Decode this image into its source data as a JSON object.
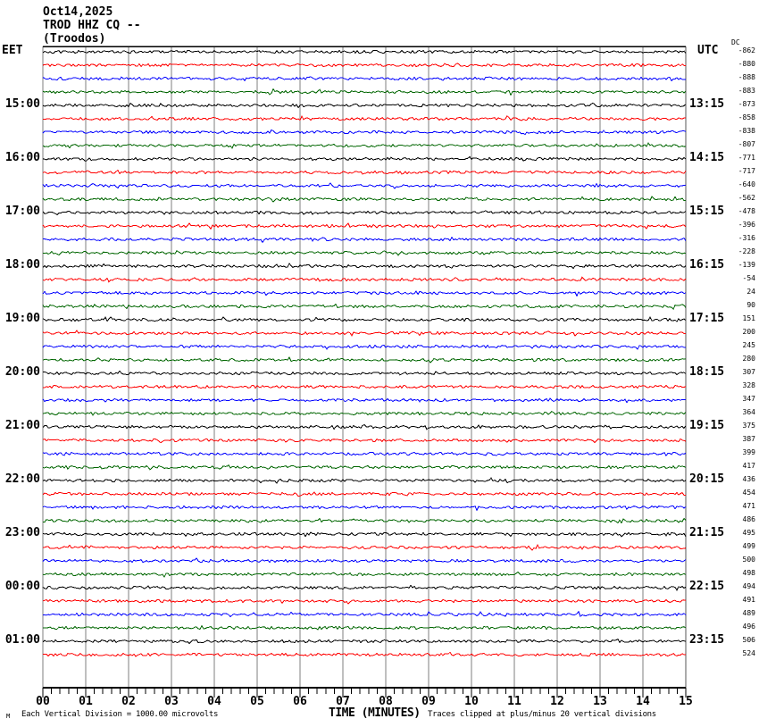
{
  "header": {
    "date": "Oct14,2025",
    "station": "TROD HHZ CQ --",
    "location": "(Troodos)"
  },
  "left_axis": {
    "label": "EET"
  },
  "right_axis": {
    "label": "UTC",
    "dc_label": "DC"
  },
  "x_axis": {
    "label": "TIME (MINUTES)"
  },
  "footer": {
    "watermark": "M",
    "division_note": "Each Vertical Division = 1000.00 microvolts",
    "clipping_note": "Traces clipped at plus/minus 20 vertical divisions"
  },
  "chart_data": {
    "type": "line",
    "variant": "helicorder-seismogram",
    "title": "TROD HHZ CQ -- (Troodos) Oct14,2025",
    "xlabel": "TIME (MINUTES)",
    "x_range_minutes": [
      0,
      15
    ],
    "x_ticks": [
      "00",
      "01",
      "02",
      "03",
      "04",
      "05",
      "06",
      "07",
      "08",
      "09",
      "10",
      "11",
      "12",
      "13",
      "14",
      "15"
    ],
    "minor_ticks_per_minute": 5,
    "rows_count": 46,
    "minutes_per_row": 15,
    "trace_color_cycle": [
      "#000000",
      "#ff0000",
      "#0000ff",
      "#006600"
    ],
    "grid_color": "#7f7f7f",
    "labeled_rows_1indexed": [
      5,
      9,
      13,
      17,
      21,
      25,
      29,
      33,
      37,
      41,
      45
    ],
    "left_time_labels_eet": [
      "15:00",
      "16:00",
      "17:00",
      "18:00",
      "19:00",
      "20:00",
      "21:00",
      "22:00",
      "23:00",
      "00:00",
      "01:00"
    ],
    "right_time_labels_utc": [
      "13:15",
      "14:15",
      "15:15",
      "16:15",
      "17:15",
      "18:15",
      "19:15",
      "20:15",
      "21:15",
      "22:15",
      "23:15"
    ],
    "dc_offsets": [
      -862,
      -880,
      -888,
      -883,
      -873,
      -858,
      -838,
      -807,
      -771,
      -717,
      -640,
      -562,
      -478,
      -396,
      -316,
      -228,
      -139,
      -54,
      24,
      90,
      151,
      200,
      245,
      280,
      307,
      328,
      347,
      364,
      375,
      387,
      399,
      417,
      436,
      454,
      471,
      486,
      495,
      499,
      500,
      498,
      494,
      491,
      489,
      496,
      506,
      524
    ],
    "amplitude_note": "Each Vertical Division = 1000.00 microvolts",
    "clipping_note": "Traces clipped at plus/minus 20 vertical divisions",
    "traces_description": "flat background noise, no visible events"
  }
}
